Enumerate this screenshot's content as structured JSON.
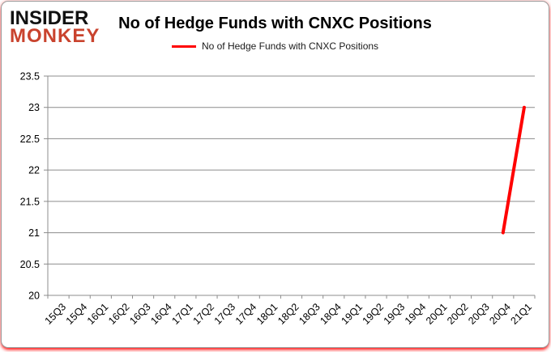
{
  "logo": {
    "line1": "INSIDER",
    "line2": "MONKEY",
    "line1_color": "#111111",
    "line2_color": "#c9432e"
  },
  "header": {
    "title": "No of Hedge Funds with CNXC Positions"
  },
  "legend": {
    "label": "No of Hedge Funds with CNXC Positions",
    "line_color": "#ff0000"
  },
  "chart_data": {
    "type": "line",
    "title": "No of Hedge Funds with CNXC Positions",
    "categories": [
      "15Q3",
      "15Q4",
      "16Q1",
      "16Q2",
      "16Q3",
      "16Q4",
      "17Q1",
      "17Q2",
      "17Q3",
      "17Q4",
      "18Q1",
      "18Q2",
      "18Q3",
      "18Q4",
      "19Q1",
      "19Q2",
      "19Q3",
      "19Q4",
      "20Q1",
      "20Q2",
      "20Q3",
      "20Q4",
      "21Q1"
    ],
    "series": [
      {
        "name": "No of Hedge Funds with CNXC Positions",
        "color": "#ff0000",
        "values": [
          null,
          null,
          null,
          null,
          null,
          null,
          null,
          null,
          null,
          null,
          null,
          null,
          null,
          null,
          null,
          null,
          null,
          null,
          null,
          null,
          null,
          21,
          23
        ]
      }
    ],
    "ylim": [
      20,
      23.5
    ],
    "ytick_step": 0.5,
    "ytick_labels": [
      "20",
      "20.5",
      "21",
      "21.5",
      "22",
      "22.5",
      "23",
      "23.5"
    ],
    "grid": true,
    "gridline_color": "#8c8c8c",
    "axis_color": "#8c8c8c",
    "tick_label_color": "#000000",
    "legend_position": "top",
    "xlabel": "",
    "ylabel": ""
  }
}
